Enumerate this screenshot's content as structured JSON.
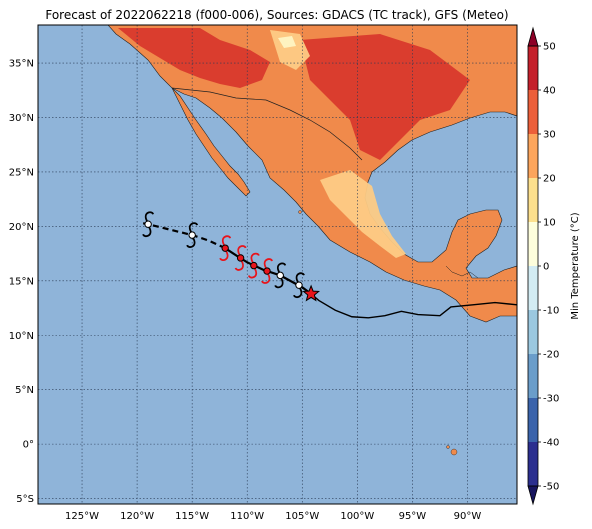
{
  "title": "Forecast of 2022062218 (f000-006), Sources: GDACS (TC track), GFS (Meteo)",
  "colors": {
    "ocean": "#8fb4d9",
    "land_warm": "#f4a361",
    "land_hot": "#ef6b3c",
    "land_very_hot": "#d7342b",
    "land_mild": "#fdcb85",
    "land_cool": "#fef3c0",
    "track": "#000000",
    "forecast_marker": "#e8141b",
    "star": "#e8141b"
  },
  "map": {
    "lon_range": [
      -129,
      -85.5
    ],
    "lat_range": [
      -5.5,
      38.5
    ],
    "lon_ticks": [
      {
        "value": -125,
        "label": "125°W"
      },
      {
        "value": -120,
        "label": "120°W"
      },
      {
        "value": -115,
        "label": "115°W"
      },
      {
        "value": -110,
        "label": "110°W"
      },
      {
        "value": -105,
        "label": "105°W"
      },
      {
        "value": -100,
        "label": "100°W"
      },
      {
        "value": -95,
        "label": "95°W"
      },
      {
        "value": -90,
        "label": "90°W"
      }
    ],
    "lat_ticks": [
      {
        "value": 35,
        "label": "35°N"
      },
      {
        "value": 30,
        "label": "30°N"
      },
      {
        "value": 25,
        "label": "25°N"
      },
      {
        "value": 20,
        "label": "20°N"
      },
      {
        "value": 15,
        "label": "15°N"
      },
      {
        "value": 10,
        "label": "10°N"
      },
      {
        "value": 5,
        "label": "5°N"
      },
      {
        "value": 0,
        "label": "0°"
      },
      {
        "value": -5,
        "label": "5°S"
      }
    ],
    "grid": true
  },
  "colorbar": {
    "label": "Min Temperature (°C)",
    "levels": [
      -50,
      -40,
      -30,
      -20,
      -10,
      0,
      10,
      20,
      30,
      40,
      50
    ],
    "colors": [
      "#2b2f8f",
      "#3a63ab",
      "#6a9dca",
      "#9bc8e0",
      "#d3ecf3",
      "#fefedc",
      "#fde08d",
      "#fca55c",
      "#ec5f3a",
      "#c4202b"
    ],
    "extend_colors": {
      "low": "#17155e",
      "high": "#8c0026"
    }
  },
  "track": {
    "past": [
      [
        -85.5,
        12.8
      ],
      [
        -87.5,
        13.0
      ],
      [
        -89.5,
        12.8
      ],
      [
        -91.5,
        12.6
      ],
      [
        -92.5,
        11.8
      ],
      [
        -94.5,
        11.9
      ],
      [
        -96,
        12.2
      ],
      [
        -97.5,
        11.8
      ],
      [
        -99,
        11.6
      ],
      [
        -100.5,
        11.7
      ],
      [
        -102,
        12.3
      ],
      [
        -103.5,
        13.2
      ],
      [
        -104.2,
        13.8
      ]
    ],
    "current": [
      -104.2,
      13.8
    ],
    "forecast_solid": [
      [
        -104.2,
        13.8
      ],
      [
        -105.0,
        14.4
      ],
      [
        -107.0,
        15.5
      ],
      [
        -108.5,
        16.0
      ],
      [
        -110.0,
        16.7
      ],
      [
        -110.8,
        17.2
      ],
      [
        -112.0,
        18.0
      ]
    ],
    "forecast_dashed": [
      [
        -112.0,
        18.0
      ],
      [
        -113.5,
        18.7
      ],
      [
        -115.0,
        19.2
      ],
      [
        -117.0,
        19.7
      ],
      [
        -119.0,
        20.2
      ],
      [
        -119.5,
        20.3
      ]
    ],
    "symbols": [
      {
        "lon": -105.3,
        "lat": 14.6,
        "color": "black",
        "dot": "white"
      },
      {
        "lon": -107.0,
        "lat": 15.5,
        "color": "black",
        "dot": "white"
      },
      {
        "lon": -108.2,
        "lat": 15.9,
        "color": "red",
        "dot": "red"
      },
      {
        "lon": -109.4,
        "lat": 16.4,
        "color": "red",
        "dot": "red"
      },
      {
        "lon": -110.6,
        "lat": 17.1,
        "color": "red",
        "dot": "red"
      },
      {
        "lon": -112.0,
        "lat": 18.0,
        "color": "red",
        "dot": "red"
      },
      {
        "lon": -115.0,
        "lat": 19.2,
        "color": "black",
        "dot": "white"
      },
      {
        "lon": -119.0,
        "lat": 20.2,
        "color": "black",
        "dot": "white"
      }
    ]
  }
}
